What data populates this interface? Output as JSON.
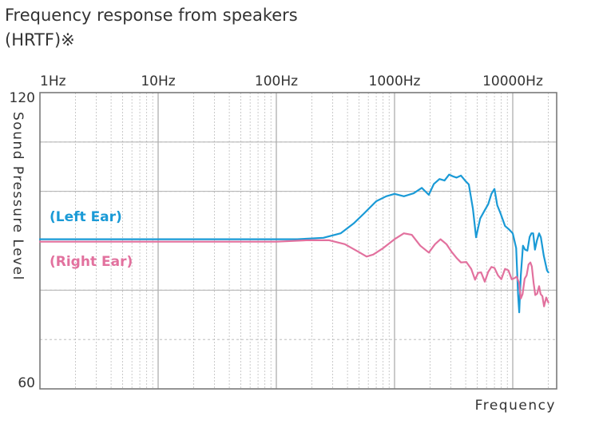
{
  "chart_data": {
    "type": "line",
    "title_line1": "Frequency response from speakers",
    "title_line2": "(HRTF)※",
    "xlabel": "Frequency",
    "ylabel": "Sound Pressure Level",
    "x_scale": "log",
    "xlim": [
      1,
      20000
    ],
    "ylim": [
      60,
      120
    ],
    "x_ticks": [
      {
        "value": 1,
        "label": "1Hz"
      },
      {
        "value": 10,
        "label": "10Hz"
      },
      {
        "value": 100,
        "label": "100Hz"
      },
      {
        "value": 1000,
        "label": "1000Hz"
      },
      {
        "value": 10000,
        "label": "10000Hz"
      }
    ],
    "y_ticks": [
      {
        "value": 120,
        "label": "120"
      },
      {
        "value": 60,
        "label": "60"
      }
    ],
    "grid": true,
    "series": [
      {
        "name": "(Left Ear)",
        "color": "#1a9ad6",
        "points": [
          [
            1,
            90.3
          ],
          [
            50,
            90.3
          ],
          [
            150,
            90.3
          ],
          [
            250,
            90.6
          ],
          [
            350,
            91.5
          ],
          [
            450,
            93.5
          ],
          [
            550,
            95.5
          ],
          [
            700,
            98
          ],
          [
            850,
            99
          ],
          [
            1000,
            99.5
          ],
          [
            1200,
            99
          ],
          [
            1450,
            99.6
          ],
          [
            1700,
            100.7
          ],
          [
            1950,
            99.3
          ],
          [
            2150,
            101.5
          ],
          [
            2400,
            102.5
          ],
          [
            2650,
            102.2
          ],
          [
            2900,
            103.4
          ],
          [
            3150,
            103
          ],
          [
            3350,
            102.8
          ],
          [
            3650,
            103.2
          ],
          [
            3950,
            102.2
          ],
          [
            4250,
            101.4
          ],
          [
            4600,
            96.5
          ],
          [
            4900,
            90.7
          ],
          [
            5300,
            94.5
          ],
          [
            5800,
            96.2
          ],
          [
            6200,
            97.4
          ],
          [
            6600,
            99.5
          ],
          [
            7000,
            100.5
          ],
          [
            7400,
            97.2
          ],
          [
            7900,
            95.5
          ],
          [
            8600,
            93
          ],
          [
            9300,
            92.3
          ],
          [
            10000,
            91.5
          ],
          [
            10700,
            88.5
          ],
          [
            11100,
            79
          ],
          [
            11350,
            75.5
          ],
          [
            11700,
            83
          ],
          [
            12200,
            89
          ],
          [
            12700,
            88.2
          ],
          [
            13300,
            88
          ],
          [
            13900,
            90.8
          ],
          [
            14400,
            91.5
          ],
          [
            14900,
            91.5
          ],
          [
            15400,
            88.2
          ],
          [
            16000,
            90
          ],
          [
            16700,
            91.5
          ],
          [
            17300,
            90.7
          ],
          [
            18300,
            87
          ],
          [
            19500,
            84
          ],
          [
            20000,
            83.6
          ]
        ]
      },
      {
        "name": "(Right Ear)",
        "color": "#e2719e",
        "points": [
          [
            1,
            89.8
          ],
          [
            100,
            89.8
          ],
          [
            180,
            90.1
          ],
          [
            280,
            90.1
          ],
          [
            380,
            89.3
          ],
          [
            500,
            87.7
          ],
          [
            580,
            86.8
          ],
          [
            660,
            87.2
          ],
          [
            800,
            88.5
          ],
          [
            1000,
            90.3
          ],
          [
            1200,
            91.5
          ],
          [
            1400,
            91.2
          ],
          [
            1650,
            89
          ],
          [
            1950,
            87.6
          ],
          [
            2200,
            89.3
          ],
          [
            2450,
            90.3
          ],
          [
            2750,
            89.3
          ],
          [
            3050,
            87.7
          ],
          [
            3350,
            86.5
          ],
          [
            3650,
            85.6
          ],
          [
            4050,
            85.7
          ],
          [
            4450,
            84.3
          ],
          [
            4800,
            82.1
          ],
          [
            5100,
            83.5
          ],
          [
            5400,
            83.6
          ],
          [
            5800,
            81.7
          ],
          [
            6200,
            83.7
          ],
          [
            6600,
            84.7
          ],
          [
            7000,
            84.5
          ],
          [
            7500,
            83
          ],
          [
            8000,
            82.2
          ],
          [
            8600,
            84.3
          ],
          [
            9200,
            84
          ],
          [
            9800,
            82.2
          ],
          [
            10300,
            82.4
          ],
          [
            10800,
            82.7
          ],
          [
            11300,
            81.5
          ],
          [
            11700,
            78.3
          ],
          [
            12100,
            79.2
          ],
          [
            12600,
            82.3
          ],
          [
            13100,
            83
          ],
          [
            13600,
            85.2
          ],
          [
            14100,
            85.6
          ],
          [
            14500,
            84.8
          ],
          [
            15000,
            81.5
          ],
          [
            15500,
            79
          ],
          [
            16100,
            79.3
          ],
          [
            16700,
            80.8
          ],
          [
            17200,
            79.2
          ],
          [
            17800,
            78.8
          ],
          [
            18400,
            76.7
          ],
          [
            19200,
            78.5
          ],
          [
            20000,
            77.5
          ]
        ]
      }
    ],
    "legend": "inside-left, label placed near each curve"
  }
}
